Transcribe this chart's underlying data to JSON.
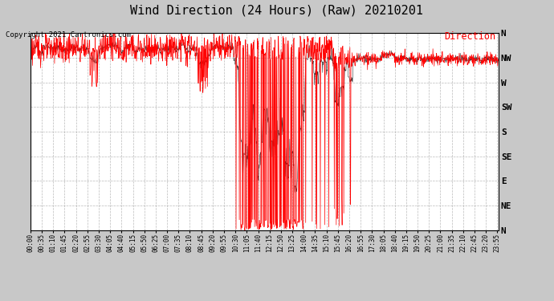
{
  "title": "Wind Direction (24 Hours) (Raw) 20210201",
  "copyright": "Copyright 2021 Cartronics.com",
  "legend_label": "Direction",
  "background_color": "#c8c8c8",
  "plot_bg_color": "#ffffff",
  "line_color": "#ff0000",
  "line2_color": "#000000",
  "title_fontsize": 11,
  "ytick_labels": [
    "N",
    "NW",
    "W",
    "SW",
    "S",
    "SE",
    "E",
    "NE",
    "N"
  ],
  "ytick_values": [
    360,
    315,
    270,
    225,
    180,
    135,
    90,
    45,
    0
  ],
  "ylim": [
    0,
    360
  ],
  "num_points": 1440,
  "seed": 123,
  "x_tick_interval_min": 35
}
